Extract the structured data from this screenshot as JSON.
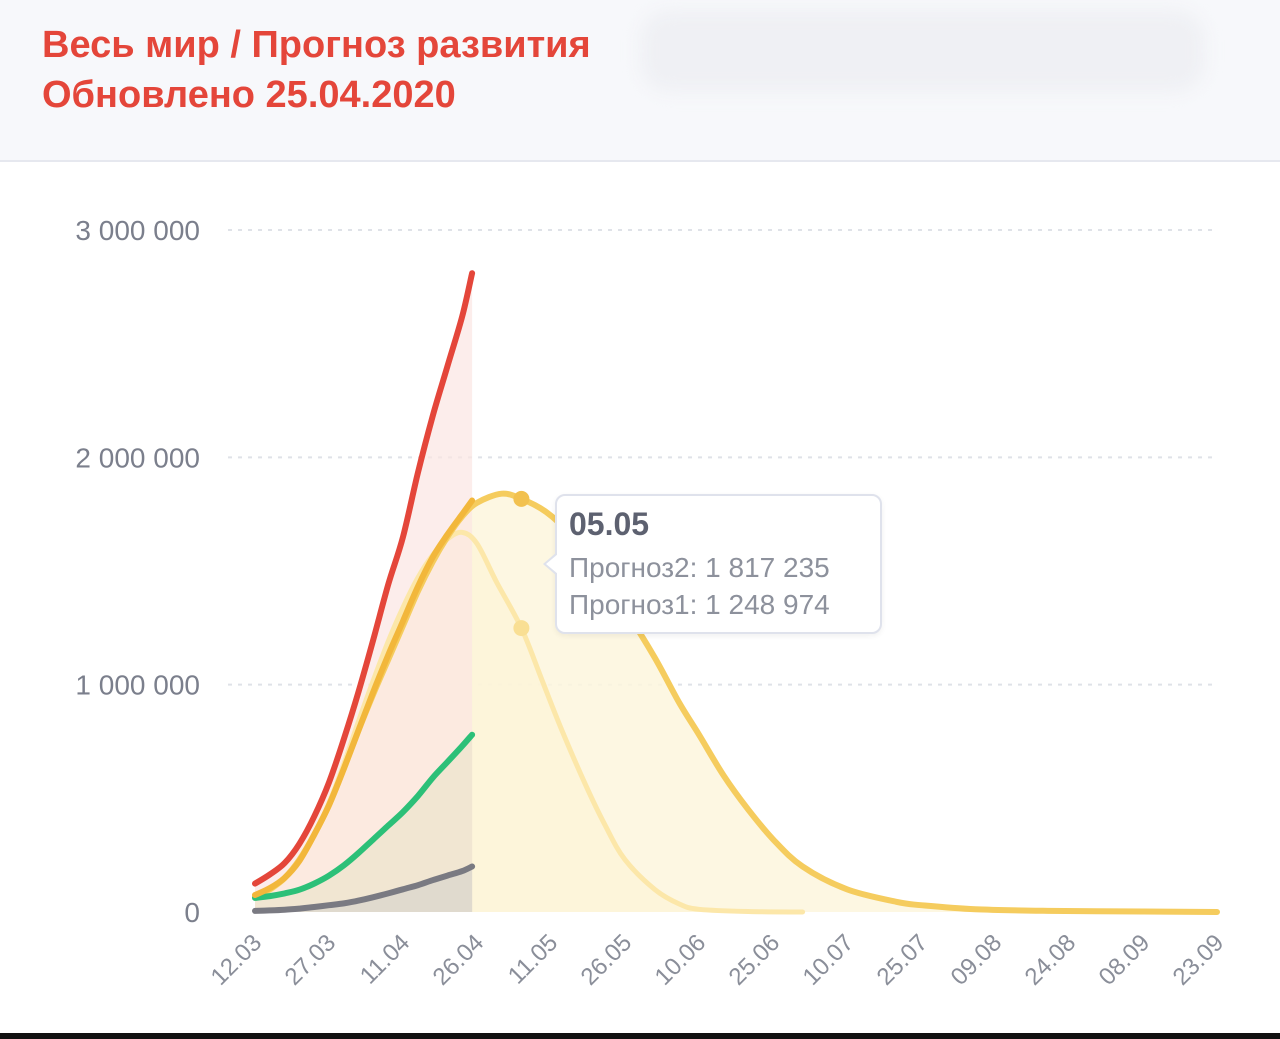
{
  "header": {
    "title": "Весь мир / Прогноз развития",
    "subtitle": "Обновлено 25.04.2020"
  },
  "colors": {
    "confirmed": "#e4463a",
    "active": "#f2b73b",
    "recovered": "#2cc078",
    "deaths": "#7a7a82",
    "forecast2": "#f5cc5e",
    "forecast1": "#fce7a9",
    "header_title": "#e4463a"
  },
  "tooltip": {
    "date": "05.05",
    "rows": [
      {
        "label": "Прогноз2: 1 817 235"
      },
      {
        "label": "Прогноз1: 1 248 974"
      }
    ]
  },
  "chart_data": {
    "type": "line",
    "x_unit": "date (dd.mm, 2020)",
    "x_ticks": [
      "12.03",
      "27.03",
      "11.04",
      "26.04",
      "11.05",
      "26.05",
      "10.06",
      "25.06",
      "10.07",
      "25.07",
      "09.08",
      "24.08",
      "08.09",
      "23.09"
    ],
    "y_ticks": [
      {
        "value": 0,
        "label": "0"
      },
      {
        "value": 1000000,
        "label": "1 000 000"
      },
      {
        "value": 2000000,
        "label": "2 000 000"
      },
      {
        "value": 3000000,
        "label": "3 000 000"
      }
    ],
    "ylim": [
      0,
      3000000
    ],
    "xlim": [
      "12.03",
      "23.09"
    ],
    "grid": true,
    "legend": "none",
    "series": [
      {
        "key": "confirmed",
        "kind": "actual",
        "fill": true,
        "points": [
          [
            "12.03",
            125000
          ],
          [
            "15.03",
            165000
          ],
          [
            "18.03",
            215000
          ],
          [
            "21.03",
            300000
          ],
          [
            "24.03",
            420000
          ],
          [
            "27.03",
            570000
          ],
          [
            "30.03",
            760000
          ],
          [
            "02.04",
            970000
          ],
          [
            "05.04",
            1200000
          ],
          [
            "08.04",
            1440000
          ],
          [
            "11.04",
            1650000
          ],
          [
            "14.04",
            1930000
          ],
          [
            "17.04",
            2180000
          ],
          [
            "20.04",
            2400000
          ],
          [
            "23.04",
            2620000
          ],
          [
            "25.04",
            2810000
          ]
        ]
      },
      {
        "key": "active",
        "kind": "actual",
        "fill": false,
        "points": [
          [
            "12.03",
            75000
          ],
          [
            "15.03",
            105000
          ],
          [
            "18.03",
            150000
          ],
          [
            "21.03",
            225000
          ],
          [
            "24.03",
            340000
          ],
          [
            "27.03",
            470000
          ],
          [
            "30.03",
            630000
          ],
          [
            "02.04",
            800000
          ],
          [
            "05.04",
            970000
          ],
          [
            "08.04",
            1130000
          ],
          [
            "11.04",
            1280000
          ],
          [
            "14.04",
            1430000
          ],
          [
            "17.04",
            1560000
          ],
          [
            "20.04",
            1660000
          ],
          [
            "23.04",
            1750000
          ],
          [
            "25.04",
            1810000
          ]
        ]
      },
      {
        "key": "recovered",
        "kind": "actual",
        "fill": true,
        "points": [
          [
            "12.03",
            62000
          ],
          [
            "15.03",
            70000
          ],
          [
            "18.03",
            82000
          ],
          [
            "21.03",
            98000
          ],
          [
            "24.03",
            125000
          ],
          [
            "27.03",
            160000
          ],
          [
            "30.03",
            205000
          ],
          [
            "02.04",
            260000
          ],
          [
            "05.04",
            320000
          ],
          [
            "08.04",
            380000
          ],
          [
            "11.04",
            440000
          ],
          [
            "14.04",
            510000
          ],
          [
            "17.04",
            590000
          ],
          [
            "20.04",
            660000
          ],
          [
            "23.04",
            730000
          ],
          [
            "25.04",
            780000
          ]
        ]
      },
      {
        "key": "deaths",
        "kind": "actual",
        "fill": true,
        "points": [
          [
            "12.03",
            5000
          ],
          [
            "15.03",
            7000
          ],
          [
            "18.03",
            10000
          ],
          [
            "21.03",
            15000
          ],
          [
            "24.03",
            22000
          ],
          [
            "27.03",
            30000
          ],
          [
            "30.03",
            38000
          ],
          [
            "02.04",
            50000
          ],
          [
            "05.04",
            65000
          ],
          [
            "08.04",
            82000
          ],
          [
            "11.04",
            100000
          ],
          [
            "14.04",
            118000
          ],
          [
            "17.04",
            140000
          ],
          [
            "20.04",
            160000
          ],
          [
            "23.04",
            180000
          ],
          [
            "25.04",
            200000
          ]
        ]
      },
      {
        "key": "forecast2",
        "kind": "forecast",
        "fill": true,
        "points": [
          [
            "12.03",
            65000
          ],
          [
            "15.03",
            100000
          ],
          [
            "18.03",
            150000
          ],
          [
            "21.03",
            230000
          ],
          [
            "24.03",
            340000
          ],
          [
            "27.03",
            470000
          ],
          [
            "30.03",
            630000
          ],
          [
            "02.04",
            800000
          ],
          [
            "05.04",
            960000
          ],
          [
            "08.04",
            1110000
          ],
          [
            "11.04",
            1260000
          ],
          [
            "14.04",
            1410000
          ],
          [
            "17.04",
            1540000
          ],
          [
            "20.04",
            1650000
          ],
          [
            "23.04",
            1740000
          ],
          [
            "26.04",
            1800000
          ],
          [
            "01.05",
            1840000
          ],
          [
            "05.05",
            1817235
          ],
          [
            "10.05",
            1760000
          ],
          [
            "15.05",
            1660000
          ],
          [
            "20.05",
            1520000
          ],
          [
            "26.05",
            1330000
          ],
          [
            "01.06",
            1120000
          ],
          [
            "06.06",
            920000
          ],
          [
            "10.06",
            780000
          ],
          [
            "15.06",
            600000
          ],
          [
            "20.06",
            450000
          ],
          [
            "25.06",
            320000
          ],
          [
            "01.07",
            200000
          ],
          [
            "10.07",
            100000
          ],
          [
            "20.07",
            45000
          ],
          [
            "25.07",
            30000
          ],
          [
            "05.08",
            12000
          ],
          [
            "20.08",
            5000
          ],
          [
            "08.09",
            2000
          ],
          [
            "23.09",
            0
          ]
        ]
      },
      {
        "key": "forecast1",
        "kind": "forecast",
        "fill": true,
        "points": [
          [
            "12.03",
            60000
          ],
          [
            "15.03",
            95000
          ],
          [
            "18.03",
            145000
          ],
          [
            "21.03",
            225000
          ],
          [
            "24.03",
            340000
          ],
          [
            "27.03",
            480000
          ],
          [
            "30.03",
            650000
          ],
          [
            "02.04",
            840000
          ],
          [
            "05.04",
            1020000
          ],
          [
            "08.04",
            1190000
          ],
          [
            "11.04",
            1340000
          ],
          [
            "14.04",
            1470000
          ],
          [
            "17.04",
            1570000
          ],
          [
            "20.04",
            1640000
          ],
          [
            "23.04",
            1670000
          ],
          [
            "26.04",
            1620000
          ],
          [
            "30.04",
            1450000
          ],
          [
            "05.05",
            1248974
          ],
          [
            "09.05",
            1030000
          ],
          [
            "13.05",
            810000
          ],
          [
            "18.05",
            560000
          ],
          [
            "22.05",
            380000
          ],
          [
            "26.05",
            230000
          ],
          [
            "01.06",
            100000
          ],
          [
            "06.06",
            35000
          ],
          [
            "10.06",
            12000
          ],
          [
            "20.06",
            2000
          ],
          [
            "01.07",
            0
          ]
        ]
      }
    ],
    "markers": [
      {
        "series": "forecast2",
        "x": "05.05",
        "y": 1817235
      },
      {
        "series": "forecast1",
        "x": "05.05",
        "y": 1248974
      }
    ],
    "actual_end": "25.04"
  }
}
